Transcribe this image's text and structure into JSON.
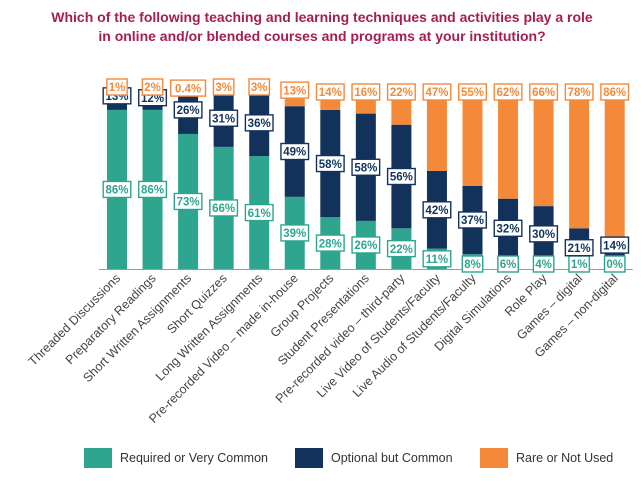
{
  "chart_data": {
    "type": "bar",
    "stacked": true,
    "title_lines": [
      "Which of the following teaching and learning techniques and activities play a role",
      "in online and/or blended courses and programs at your institution?"
    ],
    "categories": [
      "Threaded Discussions",
      "Preparatory Readings",
      "Short Written Assignments",
      "Short Quizzes",
      "Long Written Assignments",
      "Pre-recorded Video – made in-house",
      "Group Projects",
      "Student Presentations",
      "Pre-recorded video – third-party",
      "Live Video of Students/Faculty",
      "Live Audio of Students/Faculty",
      "Digital Simulations",
      "Role Play",
      "Games – digital",
      "Games – non-digital"
    ],
    "series": [
      {
        "name": "Required or Very Common",
        "color": "#2ea58f",
        "values": [
          86,
          86,
          73,
          66,
          61,
          39,
          28,
          26,
          22,
          11,
          8,
          6,
          4,
          1,
          0
        ],
        "labels": [
          "86%",
          "86%",
          "73%",
          "66%",
          "61%",
          "39%",
          "28%",
          "26%",
          "22%",
          "11%",
          "8%",
          "6%",
          "4%",
          "1%",
          "0%"
        ]
      },
      {
        "name": "Optional but Common",
        "color": "#13325b",
        "values": [
          13,
          12,
          26,
          31,
          36,
          49,
          58,
          58,
          56,
          42,
          37,
          32,
          30,
          21,
          14
        ],
        "labels": [
          "13%",
          "12%",
          "26%",
          "31%",
          "36%",
          "49%",
          "58%",
          "58%",
          "56%",
          "42%",
          "37%",
          "32%",
          "30%",
          "21%",
          "14%"
        ]
      },
      {
        "name": "Rare or Not Used",
        "color": "#f5893a",
        "values": [
          1,
          2,
          0.4,
          3,
          3,
          13,
          14,
          16,
          22,
          47,
          55,
          62,
          66,
          78,
          86
        ],
        "labels": [
          "1%",
          "2%",
          "0.4%",
          "3%",
          "3%",
          "13%",
          "14%",
          "16%",
          "22%",
          "47%",
          "55%",
          "62%",
          "66%",
          "78%",
          "86%"
        ]
      }
    ],
    "ylim": [
      0,
      100
    ],
    "xlabel": "",
    "ylabel": "",
    "legend_position": "bottom"
  }
}
